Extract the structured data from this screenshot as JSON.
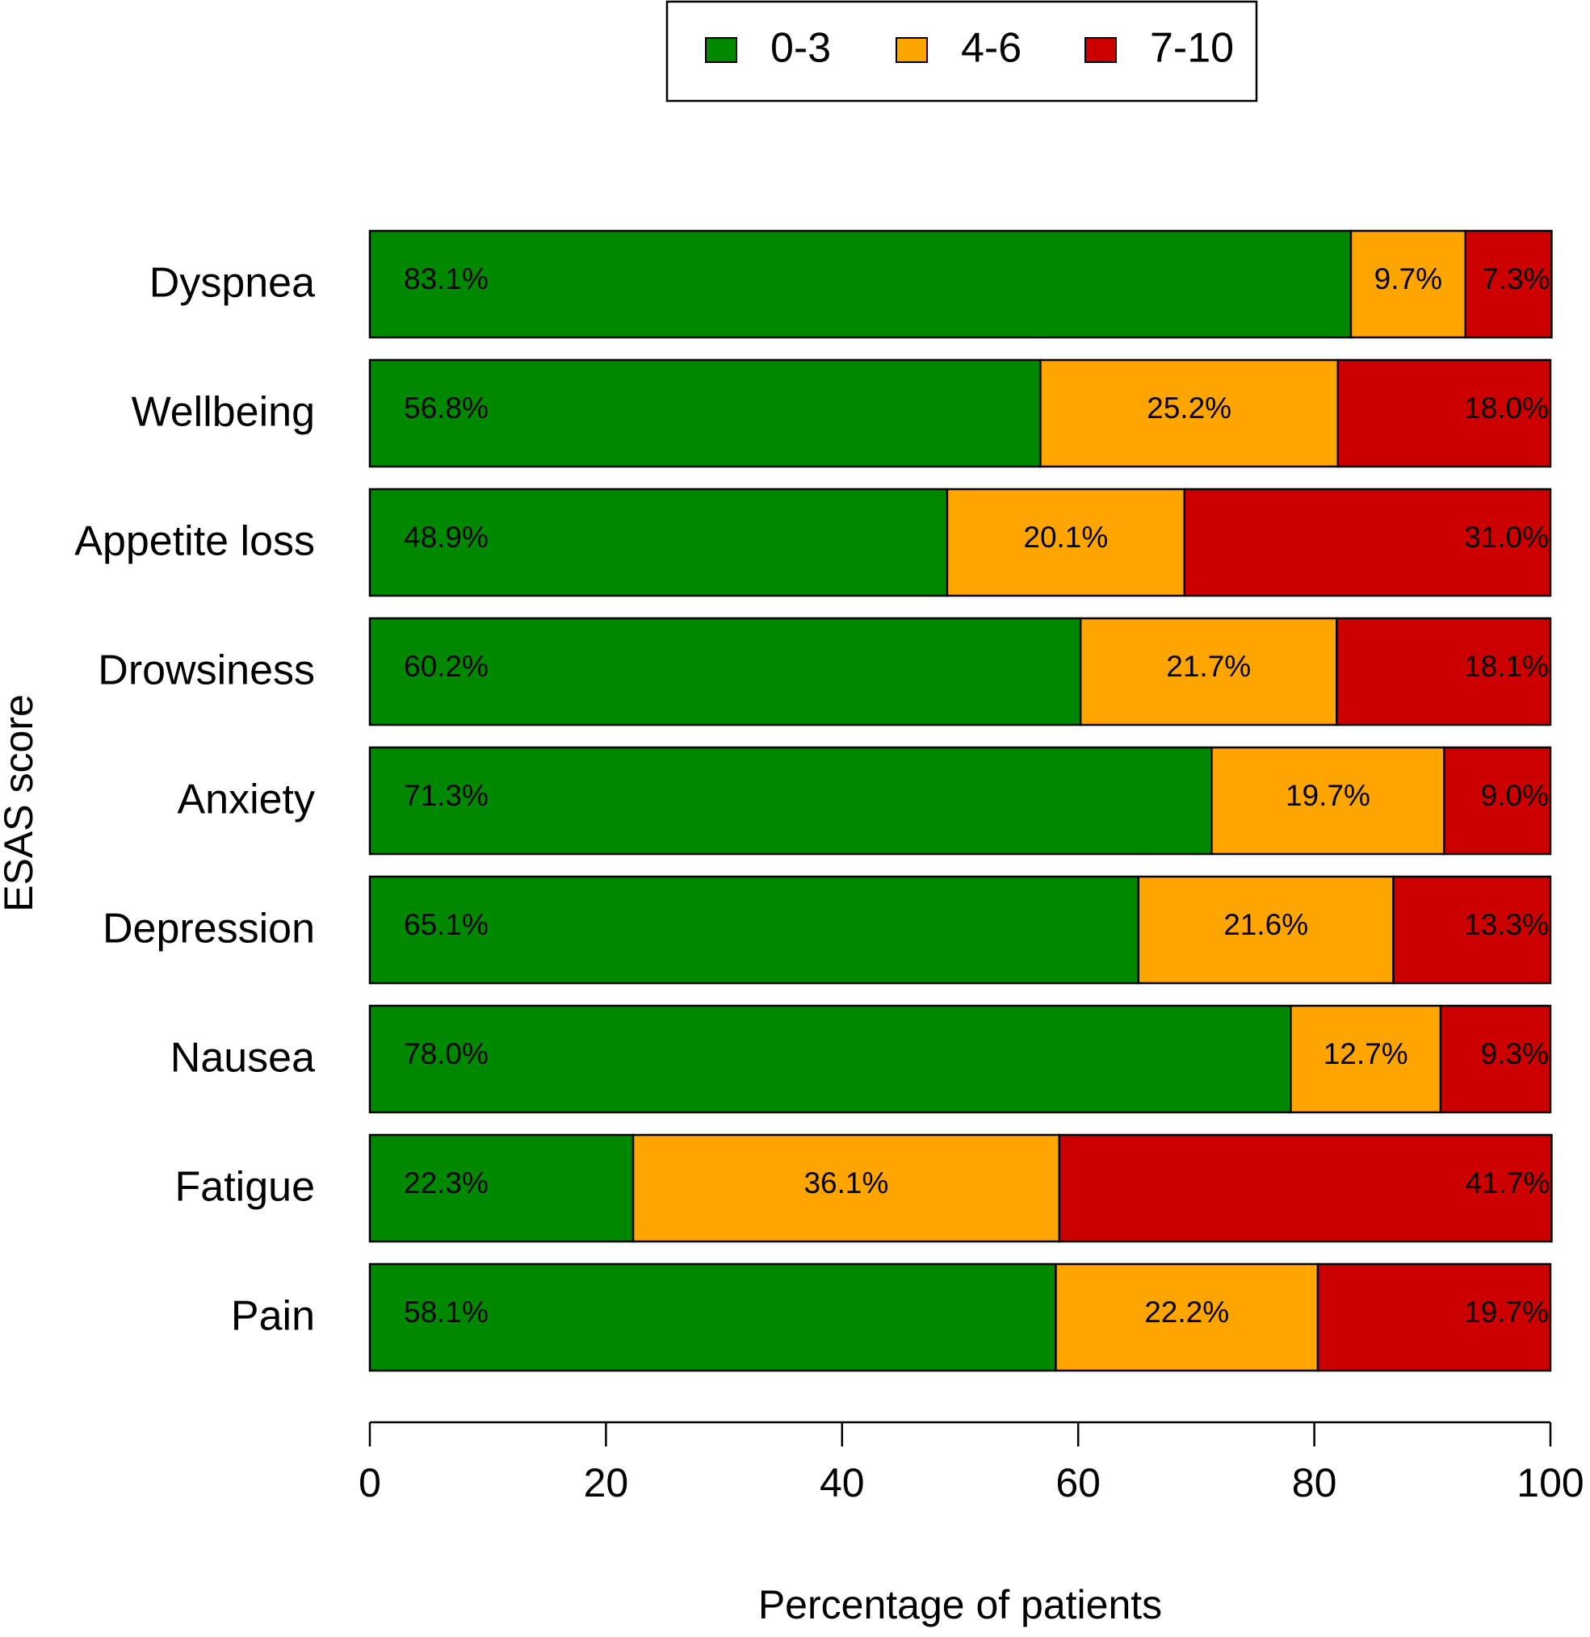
{
  "chart_data": {
    "type": "bar",
    "orientation": "horizontal",
    "stacked": true,
    "categories": [
      "Pain",
      "Fatigue",
      "Nausea",
      "Depression",
      "Anxiety",
      "Drowsiness",
      "Appetite loss",
      "Wellbeing",
      "Dyspnea"
    ],
    "series": [
      {
        "name": "0-3",
        "color": "#008800",
        "values": [
          58.1,
          22.3,
          78.0,
          65.1,
          71.3,
          60.2,
          48.9,
          56.8,
          83.1
        ],
        "labels": [
          "58.1%",
          "22.3%",
          "78.0%",
          "65.1%",
          "71.3%",
          "60.2%",
          "48.9%",
          "56.8%",
          "83.1%"
        ]
      },
      {
        "name": "4-6",
        "color": "#FFA500",
        "values": [
          22.2,
          36.1,
          12.7,
          21.6,
          19.7,
          21.7,
          20.1,
          25.2,
          9.7
        ],
        "labels": [
          "22.2%",
          "36.1%",
          "12.7%",
          "21.6%",
          "19.7%",
          "21.7%",
          "20.1%",
          "25.2%",
          "9.7%"
        ]
      },
      {
        "name": "7-10",
        "color": "#CC0000",
        "values": [
          19.7,
          41.7,
          9.3,
          13.3,
          9.0,
          18.1,
          31.0,
          18.0,
          7.3
        ],
        "labels": [
          "19.7%",
          "41.7%",
          "9.3%",
          "13.3%",
          "9.0%",
          "18.1%",
          "31.0%",
          "18.0%",
          "7.3%"
        ]
      }
    ],
    "xlabel": "Percentage of patients",
    "ylabel": "ESAS score",
    "xlim": [
      0,
      100
    ],
    "xticks": [
      0,
      20,
      40,
      60,
      80,
      100
    ],
    "xtick_labels": [
      "0",
      "20",
      "40",
      "60",
      "80",
      "100"
    ],
    "grid": false,
    "legend_position": "top-center"
  }
}
